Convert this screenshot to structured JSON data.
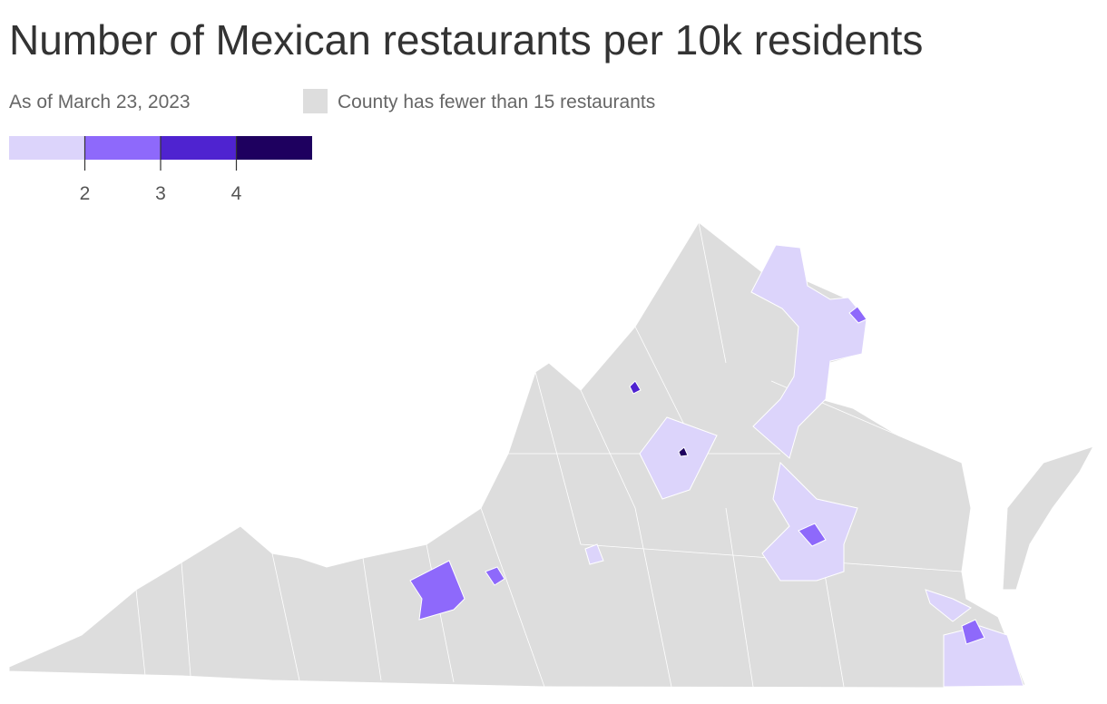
{
  "header": {
    "title": "Number of Mexican restaurants per 10k residents",
    "subtitle": "As of March 23, 2023"
  },
  "legend": {
    "colors": [
      "#dcd4fb",
      "#8e69fb",
      "#4f23d0",
      "#1e005f"
    ],
    "ticks": [
      2,
      3,
      4
    ],
    "missing": {
      "label": "County has fewer than 15 restaurants",
      "color": "#dddddd"
    }
  }
}
